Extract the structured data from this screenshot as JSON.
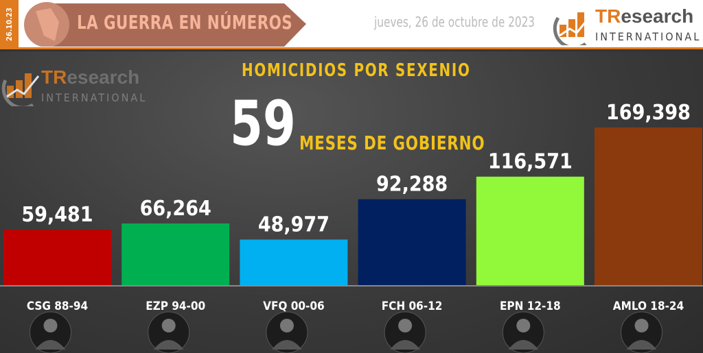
{
  "header": {
    "date_vertical": "26.10.23",
    "banner_title": "LA GUERRA EN NÚMEROS",
    "date": "jueves, 26 de octubre de 2023",
    "logo_tr": "TR",
    "logo_research": "esearch",
    "logo_international": "INTERNATIONAL"
  },
  "colors": {
    "accent": "#e07b1f",
    "title": "#f2c21b"
  },
  "chart_data": {
    "type": "bar",
    "title": "HOMICIDIOS POR SEXENIO",
    "annotation_number": "59",
    "annotation_text": "MESES DE GOBIERNO",
    "categories": [
      "CSG 88-94",
      "EZP 94-00",
      "VFQ 00-06",
      "FCH 06-12",
      "EPN 12-18",
      "AMLO 18-24"
    ],
    "values": [
      59481,
      66264,
      48977,
      92288,
      116571,
      169398
    ],
    "labels": [
      "59,481",
      "66,264",
      "48,977",
      "92,288",
      "116,571",
      "169,398"
    ],
    "bar_colors": [
      "#c00000",
      "#00b050",
      "#00b0f0",
      "#002060",
      "#92f83a",
      "#8b3a0e"
    ],
    "ylim": [
      0,
      169398
    ],
    "grid": false
  }
}
